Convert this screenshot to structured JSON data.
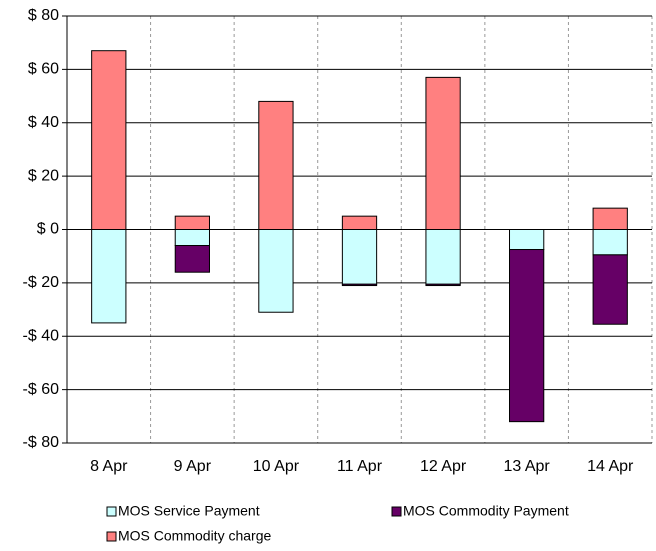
{
  "chart_data": {
    "type": "stacked_bar",
    "categories": [
      "8 Apr",
      "9 Apr",
      "10 Apr",
      "11 Apr",
      "12 Apr",
      "13 Apr",
      "14 Apr"
    ],
    "series": [
      {
        "name": "MOS Service Payment",
        "color": "#ccffff",
        "values": [
          -35,
          -6,
          -31,
          -20.5,
          -20.5,
          -7.5,
          -9.5
        ]
      },
      {
        "name": "MOS Commodity Payment",
        "color": "#660066",
        "values": [
          0,
          -10,
          0,
          -0.5,
          -0.5,
          -64.5,
          -26
        ]
      },
      {
        "name": "MOS Commodity charge",
        "color": "#ff8080",
        "values": [
          67,
          5,
          48,
          5,
          57,
          0,
          8
        ]
      }
    ],
    "ylim": [
      -80,
      80
    ],
    "yticks": [
      {
        "value": 80,
        "label": "$ 80"
      },
      {
        "value": 60,
        "label": "$ 60"
      },
      {
        "value": 40,
        "label": "$ 40"
      },
      {
        "value": 20,
        "label": "$ 20"
      },
      {
        "value": 0,
        "label": "$ 0"
      },
      {
        "value": -20,
        "label": "-$ 20"
      },
      {
        "value": -40,
        "label": "-$ 40"
      },
      {
        "value": -60,
        "label": "-$ 60"
      },
      {
        "value": -80,
        "label": "-$ 80"
      }
    ],
    "grid": true
  }
}
